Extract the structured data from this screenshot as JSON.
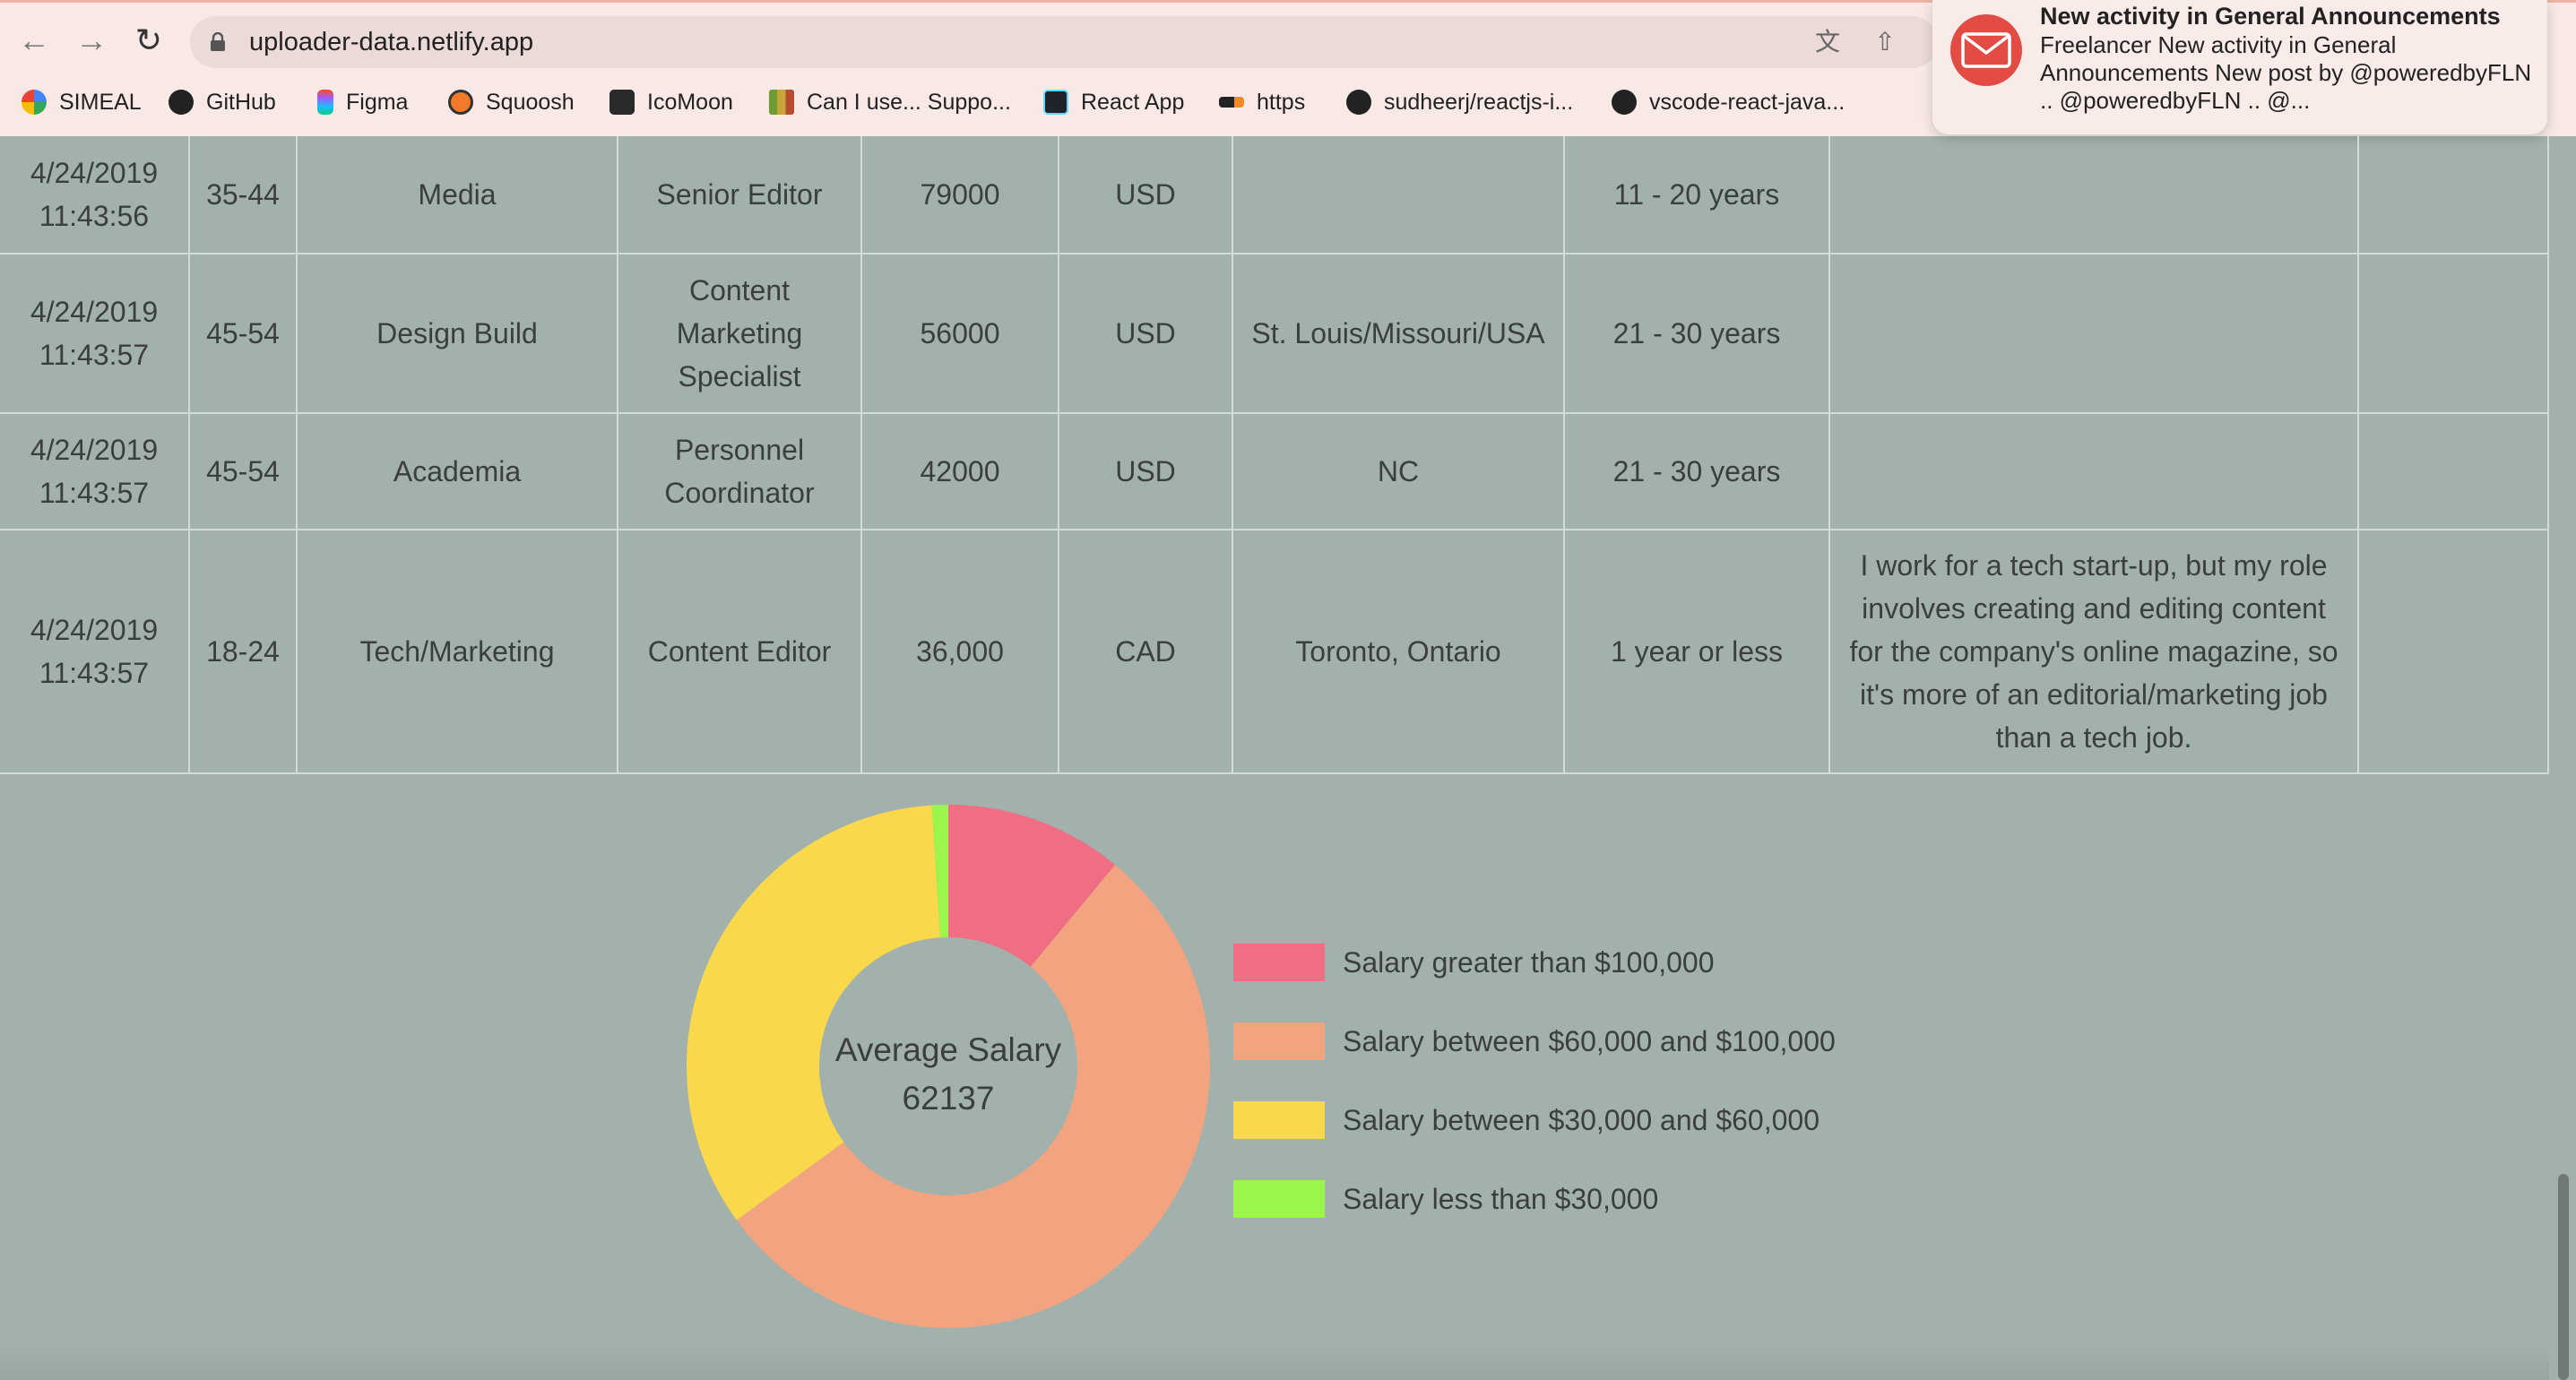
{
  "browser": {
    "url": "uploader-data.netlify.app",
    "bookmarks": [
      {
        "label": "SIMEAL",
        "icon": "simeal-icon"
      },
      {
        "label": "GitHub",
        "icon": "github-icon"
      },
      {
        "label": "Figma",
        "icon": "figma-icon"
      },
      {
        "label": "Squoosh",
        "icon": "squoosh-icon"
      },
      {
        "label": "IcoMoon",
        "icon": "icomoon-icon"
      },
      {
        "label": "Can I use... Suppo...",
        "icon": "caniuse-icon"
      },
      {
        "label": "React App",
        "icon": "react-icon"
      },
      {
        "label": "https",
        "icon": "link-icon"
      },
      {
        "label": "sudheerj/reactjs-i...",
        "icon": "github-icon"
      },
      {
        "label": "vscode-react-java...",
        "icon": "github-icon"
      }
    ]
  },
  "notification": {
    "title": "New activity in General Announcements",
    "body": "Freelancer New activity in General Announcements New post by @poweredbyFLN .. @poweredbyFLN .. @..."
  },
  "table": {
    "rows": [
      [
        "4/24/2019 11:43:56",
        "35-44",
        "Media",
        "Senior Editor",
        "79000",
        "USD",
        "",
        "11 - 20 years",
        "",
        ""
      ],
      [
        "4/24/2019 11:43:57",
        "45-54",
        "Design Build",
        "Content Marketing Specialist",
        "56000",
        "USD",
        "St. Louis/Missouri/USA",
        "21 - 30 years",
        "",
        ""
      ],
      [
        "4/24/2019 11:43:57",
        "45-54",
        "Academia",
        "Personnel Coordinator",
        "42000",
        "USD",
        "NC",
        "21 - 30 years",
        "",
        ""
      ],
      [
        "4/24/2019 11:43:57",
        "18-24",
        "Tech/Marketing",
        "Content Editor",
        "36,000",
        "CAD",
        "Toronto, Ontario",
        "1 year or less",
        "I work for a tech start-up, but my role involves creating and editing content for the company's online magazine, so it's more of an editorial/marketing job than a tech job.",
        ""
      ]
    ]
  },
  "chart_data": {
    "type": "pie",
    "title": "Average Salary",
    "center_value": "62137",
    "categories": [
      "Salary greater than $100,000",
      "Salary between $60,000 and $100,000",
      "Salary between $30,000 and $60,000",
      "Salary less than $30,000"
    ],
    "values": [
      11,
      54,
      34,
      1
    ],
    "colors": [
      "#ef6e84",
      "#f2a37f",
      "#f9d84b",
      "#9cf54a"
    ],
    "legend": "right"
  }
}
